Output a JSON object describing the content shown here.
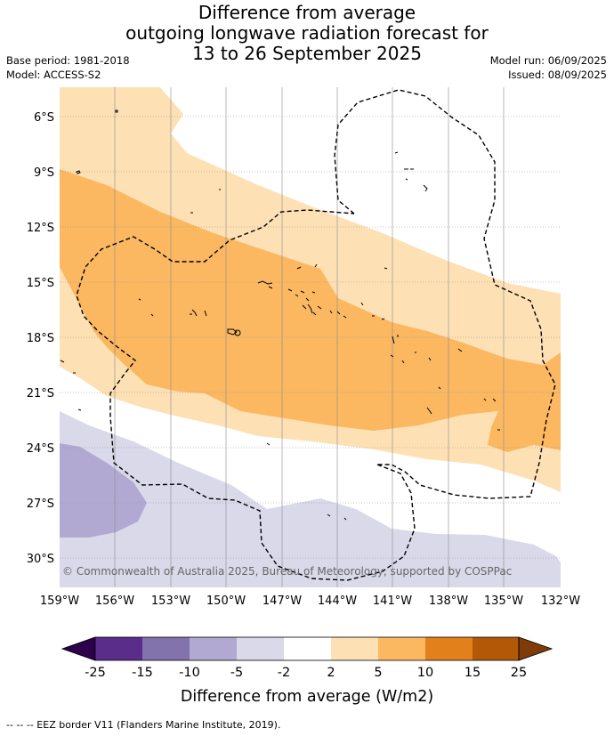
{
  "title_lines": [
    "Difference from average",
    "outgoing longwave radiation forecast for",
    "13 to 26 September 2025"
  ],
  "base_period": "Base period: 1981-2018",
  "model": "Model: ACCESS-S2",
  "model_run": "Model run: 06/09/2025",
  "issued": "Issued: 08/09/2025",
  "map": {
    "lat_labels": [
      "6°S",
      "9°S",
      "12°S",
      "15°S",
      "18°S",
      "21°S",
      "24°S",
      "27°S",
      "30°S"
    ],
    "lon_labels": [
      "159°W",
      "156°W",
      "153°W",
      "150°W",
      "147°W",
      "144°W",
      "141°W",
      "138°W",
      "135°W",
      "132°W"
    ],
    "copyright": "© Commonwealth of Australia 2025, Bureau of Meteorology, supported by COSPPac"
  },
  "colorbar": {
    "title": "Difference from average (W/m2)",
    "tick_labels": [
      "-25",
      "-15",
      "-10",
      "-5",
      "-2",
      "2",
      "5",
      "10",
      "15",
      "25"
    ],
    "bin_colors": [
      "#5a2d8b",
      "#8373ad",
      "#b1a9d2",
      "#d9d9ea",
      "#ffffff",
      "#fee0b5",
      "#fbb861",
      "#e2801c",
      "#b35806"
    ],
    "under_color": "#2d004b",
    "over_color": "#7f3b08"
  },
  "footer": "-- -- -- EEZ border V11 (Flanders Marine Institute, 2019)."
}
